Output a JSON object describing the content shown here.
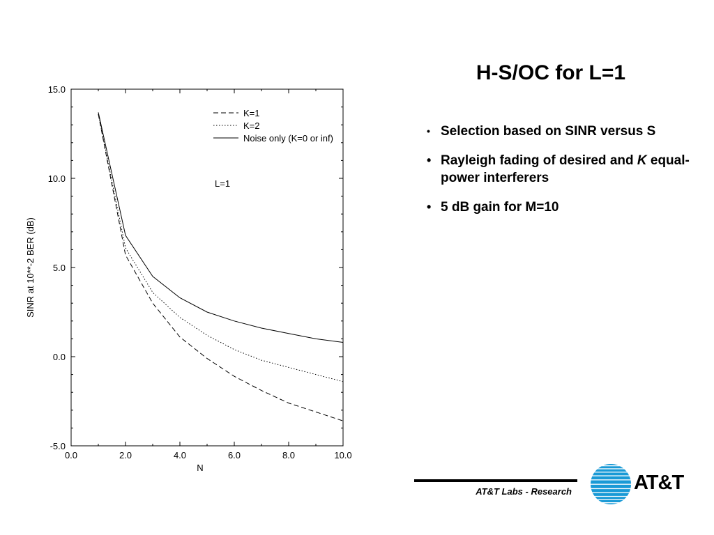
{
  "slide": {
    "title": "H-S/OC for L=1",
    "bullets": [
      {
        "parts": [
          "Selection based on SINR versus S"
        ]
      },
      {
        "parts": [
          "Rayleigh fading of desired and ",
          "K",
          " equal-power interferers"
        ]
      },
      {
        "parts": [
          "5 dB gain for M=10"
        ]
      }
    ],
    "footer": "AT&T Labs - Research",
    "logo": {
      "text": "AT&T",
      "icon": "att-globe-icon",
      "color": "#1a9ad6"
    }
  },
  "chart_data": {
    "type": "line",
    "title": "",
    "xlabel": "N",
    "ylabel": "SINR at 10**-2 BER (dB)",
    "xlim": [
      0,
      10
    ],
    "ylim": [
      -5,
      15
    ],
    "x_ticks": [
      "0.0",
      "2.0",
      "4.0",
      "6.0",
      "8.0",
      "10.0"
    ],
    "y_ticks": [
      "-5.0",
      "0.0",
      "5.0",
      "10.0",
      "15.0"
    ],
    "annotation": "L=1",
    "legend_position": "top-right",
    "grid": false,
    "series": [
      {
        "name": "K=1",
        "style": "dashed",
        "x": [
          1,
          2,
          3,
          4,
          5,
          6,
          7,
          8,
          9,
          10
        ],
        "y": [
          13.6,
          5.7,
          3.0,
          1.1,
          -0.1,
          -1.1,
          -1.9,
          -2.6,
          -3.1,
          -3.6
        ]
      },
      {
        "name": "K=2",
        "style": "dotted",
        "x": [
          1,
          2,
          3,
          4,
          5,
          6,
          7,
          8,
          9,
          10
        ],
        "y": [
          13.6,
          6.1,
          3.6,
          2.2,
          1.2,
          0.4,
          -0.2,
          -0.6,
          -1.0,
          -1.4
        ]
      },
      {
        "name": "Noise only (K=0 or inf)",
        "style": "solid",
        "x": [
          1,
          2,
          3,
          4,
          5,
          6,
          7,
          8,
          9,
          10
        ],
        "y": [
          13.7,
          6.8,
          4.5,
          3.3,
          2.5,
          2.0,
          1.6,
          1.3,
          1.0,
          0.8
        ]
      }
    ]
  }
}
